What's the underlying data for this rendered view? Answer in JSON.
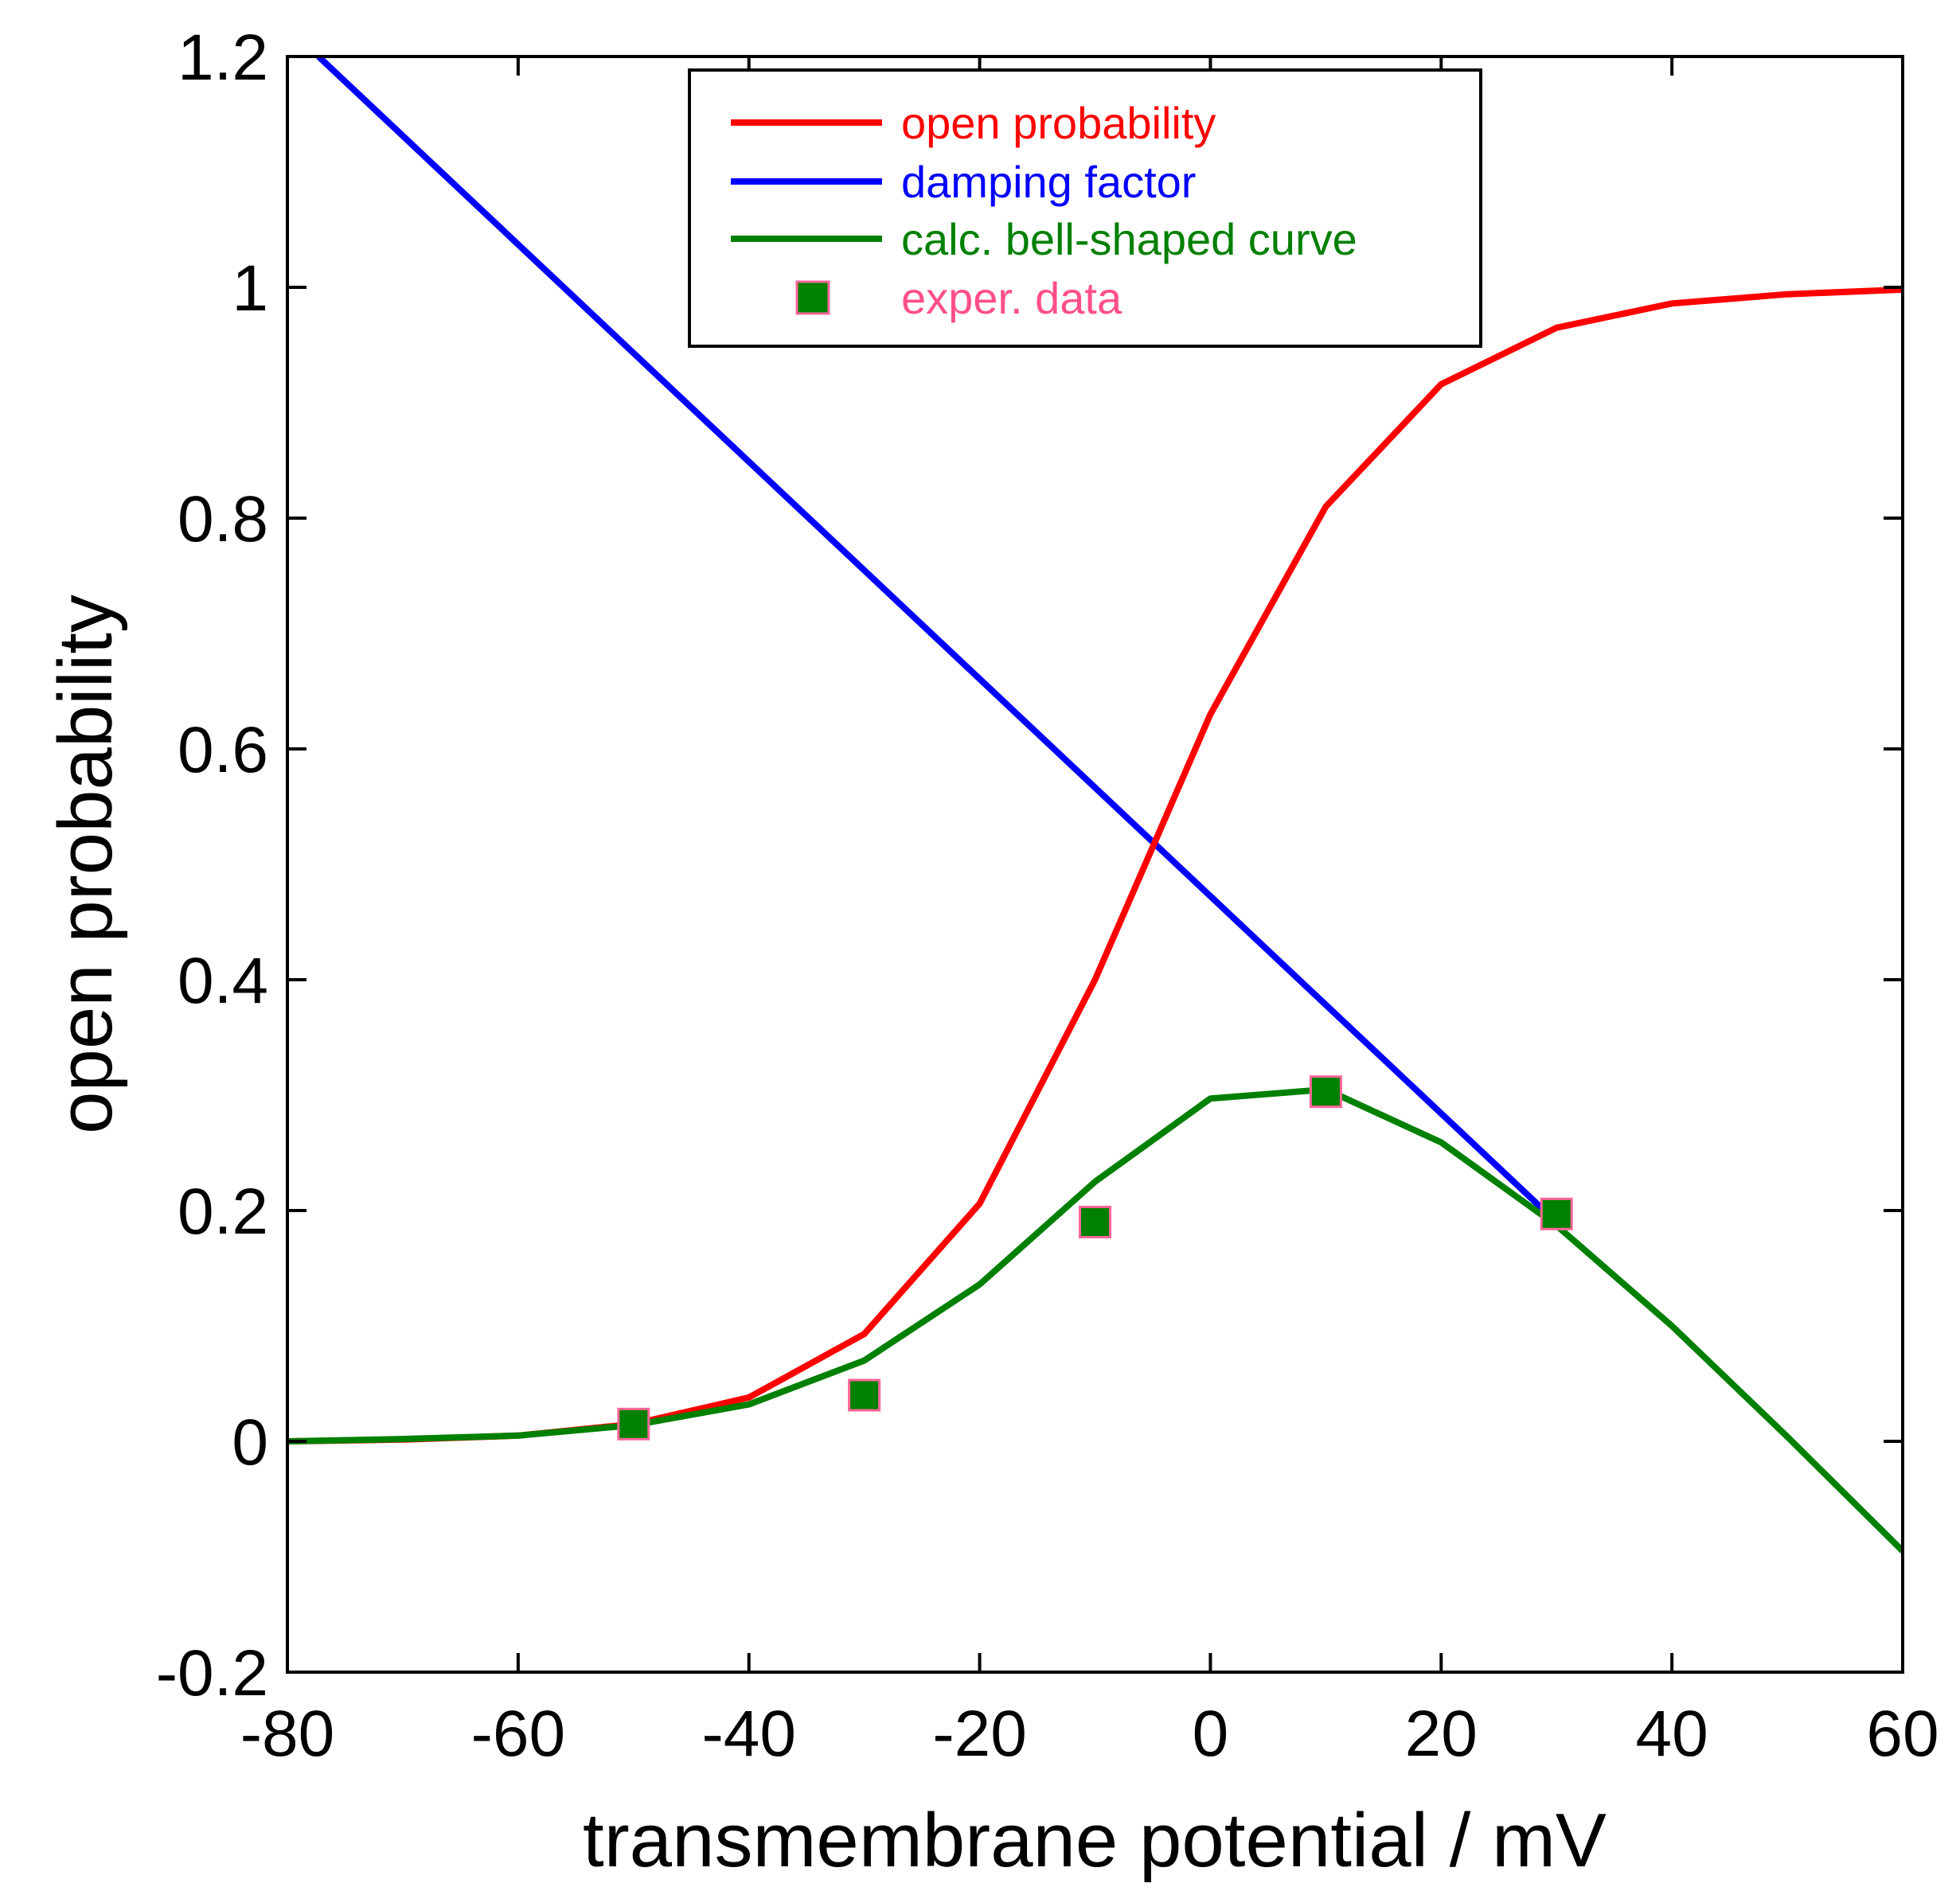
{
  "chart_data": {
    "type": "line",
    "title": "",
    "xlabel": "transmembrane potential / mV",
    "ylabel": "open probability",
    "xlim": [
      -80,
      60
    ],
    "ylim": [
      -0.2,
      1.2
    ],
    "xticks": [
      -80,
      -60,
      -40,
      -20,
      0,
      20,
      40,
      60
    ],
    "yticks": [
      -0.2,
      0,
      0.2,
      0.4,
      0.6,
      0.8,
      1,
      1.2
    ],
    "xtick_labels": [
      "-80",
      "-60",
      "-40",
      "-20",
      "0",
      "20",
      "40",
      "60"
    ],
    "ytick_labels": [
      "-0.2",
      "0",
      "0.2",
      "0.4",
      "0.6",
      "0.8",
      "1",
      "1.2"
    ],
    "grid": false,
    "legend_position": "top-center",
    "series": [
      {
        "name": "open probability",
        "kind": "line",
        "color": "#ff0000",
        "x": [
          -80,
          -70,
          -60,
          -50,
          -40,
          -30,
          -20,
          -10,
          0,
          10,
          20,
          30,
          40,
          50,
          60
        ],
        "y": [
          0.0,
          0.0015,
          0.005,
          0.015,
          0.038,
          0.093,
          0.206,
          0.4,
          0.63,
          0.81,
          0.916,
          0.965,
          0.986,
          0.994,
          0.998
        ]
      },
      {
        "name": "damping factor",
        "kind": "line",
        "color": "#0000ff",
        "x": [
          -77.3,
          30
        ],
        "y": [
          1.2,
          0.19
        ]
      },
      {
        "name": "calc. bell-shaped curve",
        "kind": "line",
        "color": "#008000",
        "x": [
          -80,
          -70,
          -60,
          -50,
          -40,
          -30,
          -20,
          -10,
          0,
          10,
          20,
          30,
          40,
          50,
          60
        ],
        "y": [
          0.0,
          0.002,
          0.005,
          0.014,
          0.032,
          0.07,
          0.136,
          0.225,
          0.297,
          0.305,
          0.259,
          0.187,
          0.1,
          0.004,
          -0.095
        ]
      },
      {
        "name": "exper. data",
        "kind": "scatter",
        "color": "#008000",
        "edgecolor": "#ff6699",
        "x": [
          -50,
          -30,
          -10,
          10,
          30
        ],
        "y": [
          0.015,
          0.04,
          0.19,
          0.303,
          0.197
        ]
      }
    ],
    "legend_text_colors": [
      "#ff0000",
      "#0000ff",
      "#008000",
      "#ff4f8b"
    ]
  }
}
